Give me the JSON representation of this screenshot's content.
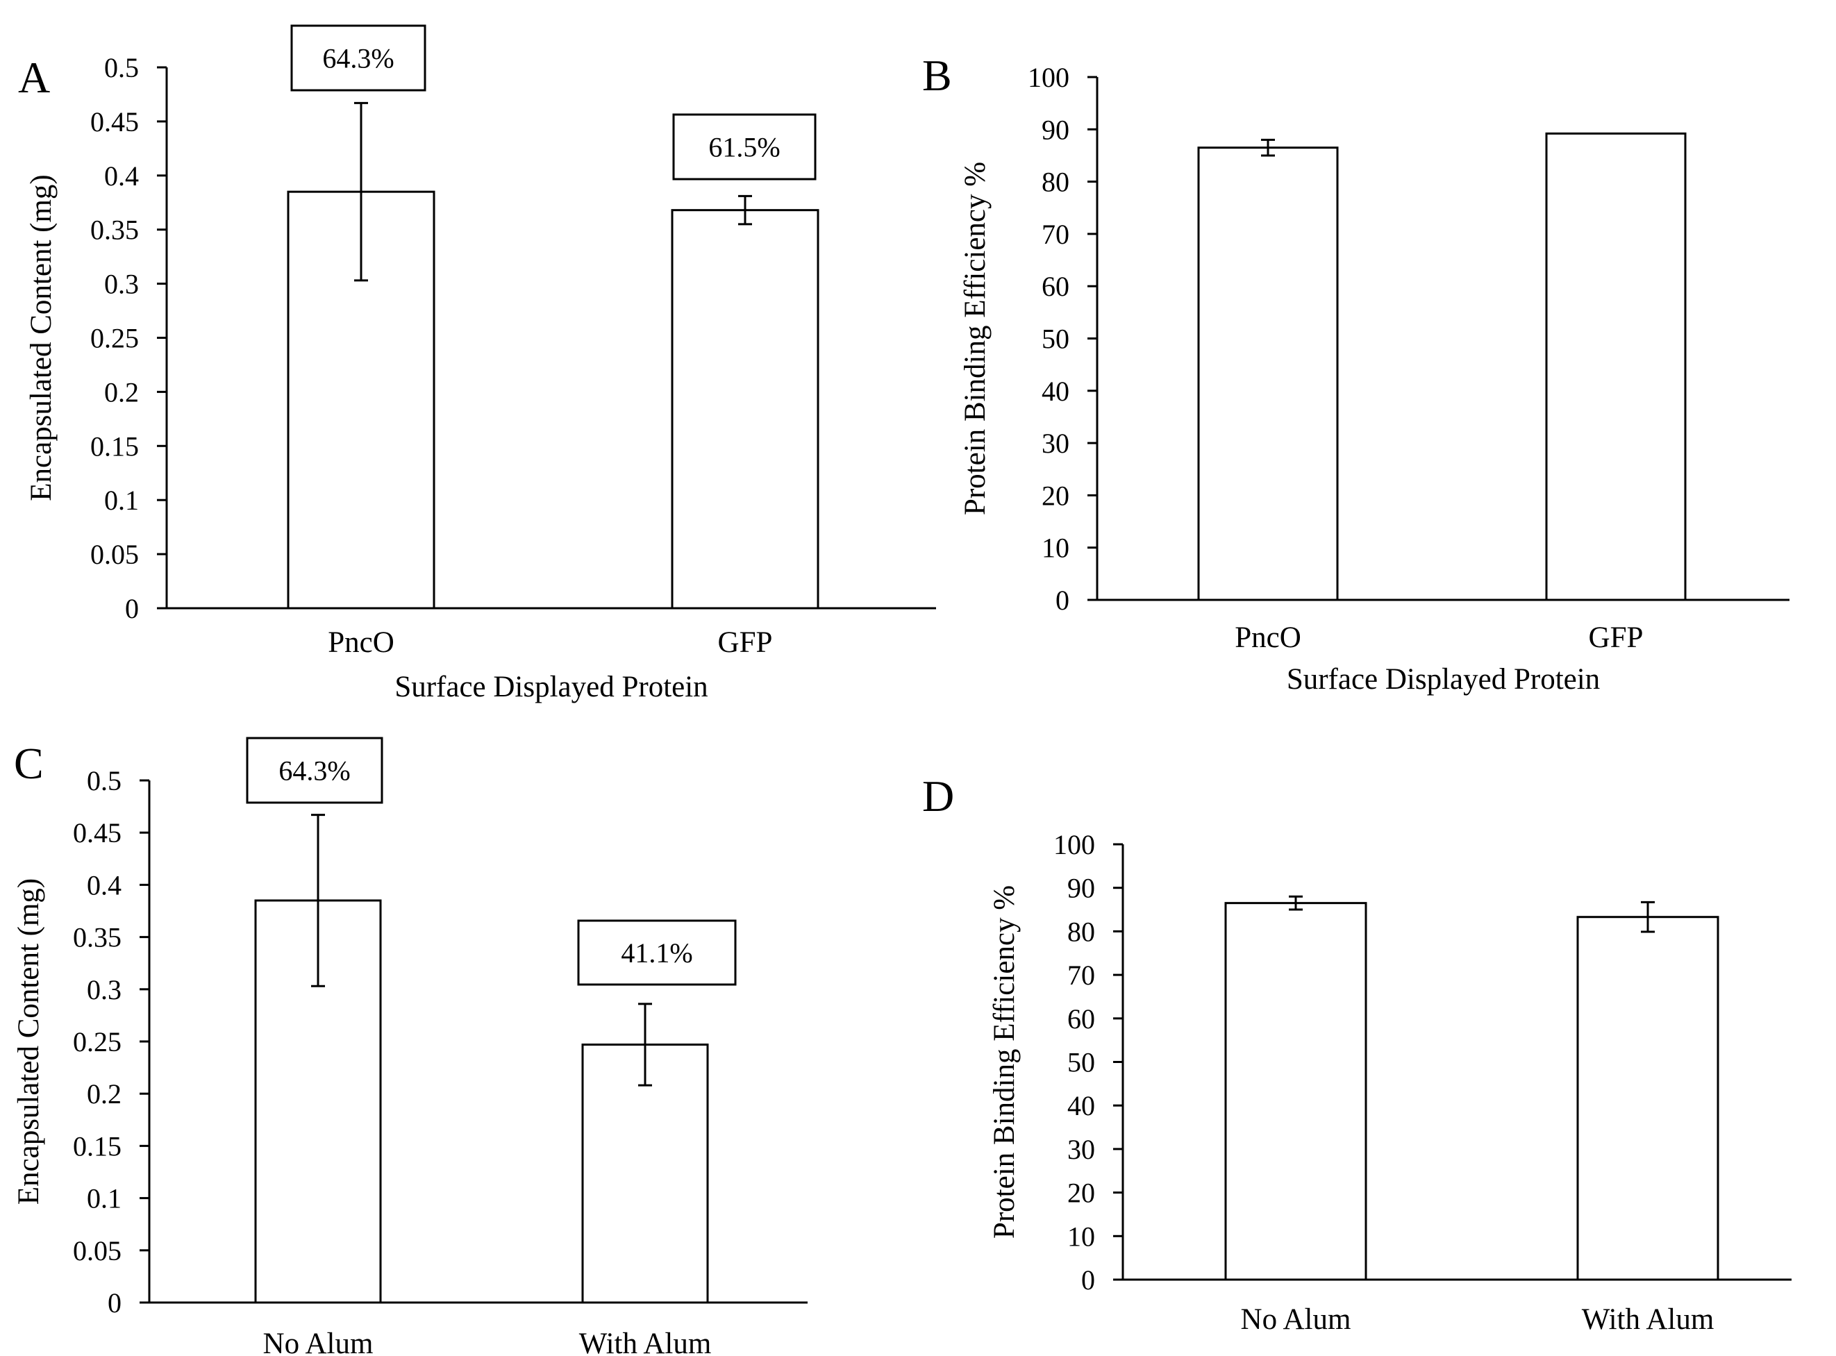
{
  "figure": {
    "charts_count": 4
  },
  "chart_data": [
    {
      "panel": "A",
      "type": "bar",
      "title": "",
      "xlabel": "Surface Displayed Protein",
      "ylabel": "Encapsulated Content (mg)",
      "categories": [
        "PncO",
        "GFP"
      ],
      "values": [
        0.385,
        0.368
      ],
      "errors": [
        0.082,
        0.013
      ],
      "annotations": [
        "64.3%",
        "61.5%"
      ],
      "ylim": [
        0,
        0.5
      ],
      "yticks": [
        "0",
        "0.05",
        "0.1",
        "0.15",
        "0.2",
        "0.25",
        "0.3",
        "0.35",
        "0.4",
        "0.45",
        "0.5"
      ],
      "grid": false,
      "legend": "none",
      "bar_fill": "#ffffff",
      "bar_stroke": "#000000"
    },
    {
      "panel": "B",
      "type": "bar",
      "title": "",
      "xlabel": "Surface Displayed Protein",
      "ylabel": "Protein Binding Efficiency %",
      "categories": [
        "PncO",
        "GFP"
      ],
      "values": [
        86.5,
        89.2
      ],
      "errors": [
        1.5,
        0
      ],
      "annotations": [],
      "ylim": [
        0,
        100
      ],
      "yticks": [
        "0",
        "10",
        "20",
        "30",
        "40",
        "50",
        "60",
        "70",
        "80",
        "90",
        "100"
      ],
      "grid": false,
      "legend": "none",
      "bar_fill": "#ffffff",
      "bar_stroke": "#000000"
    },
    {
      "panel": "C",
      "type": "bar",
      "title": "",
      "xlabel": "",
      "ylabel": "Encapsulated Content (mg)",
      "categories": [
        "No Alum",
        "With Alum"
      ],
      "values": [
        0.385,
        0.247
      ],
      "errors": [
        0.082,
        0.039
      ],
      "annotations": [
        "64.3%",
        "41.1%"
      ],
      "ylim": [
        0,
        0.5
      ],
      "yticks": [
        "0",
        "0.05",
        "0.1",
        "0.15",
        "0.2",
        "0.25",
        "0.3",
        "0.35",
        "0.4",
        "0.45",
        "0.5"
      ],
      "grid": false,
      "legend": "none",
      "bar_fill": "#ffffff",
      "bar_stroke": "#000000"
    },
    {
      "panel": "D",
      "type": "bar",
      "title": "",
      "xlabel": "",
      "ylabel": "Protein Binding Efficiency %",
      "categories": [
        "No Alum",
        "With Alum"
      ],
      "values": [
        86.5,
        83.3
      ],
      "errors": [
        1.5,
        3.4
      ],
      "annotations": [],
      "ylim": [
        0,
        100
      ],
      "yticks": [
        "0",
        "10",
        "20",
        "30",
        "40",
        "50",
        "60",
        "70",
        "80",
        "90",
        "100"
      ],
      "grid": false,
      "legend": "none",
      "bar_fill": "#ffffff",
      "bar_stroke": "#000000"
    }
  ]
}
